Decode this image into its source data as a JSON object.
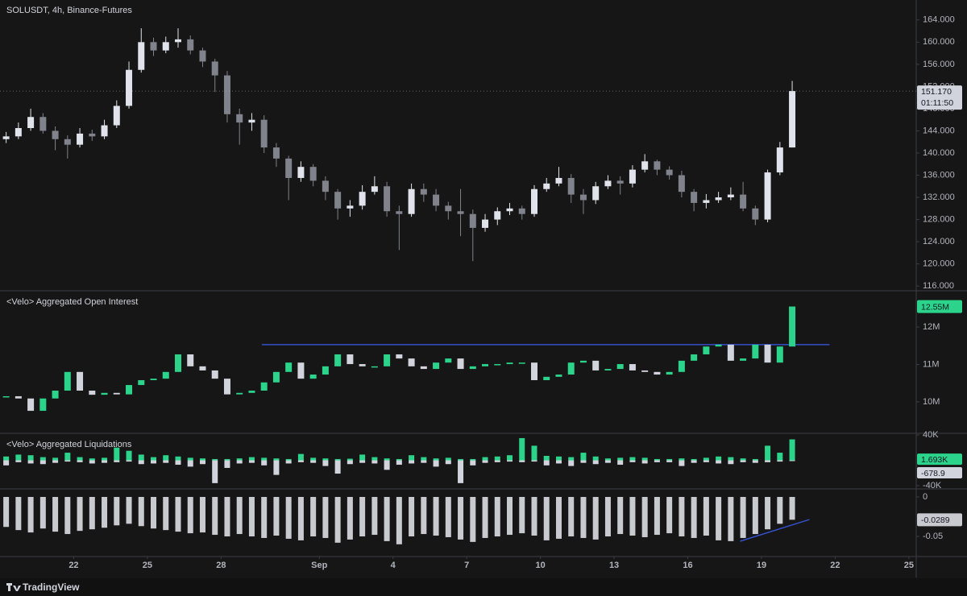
{
  "x_axis": {
    "xlim": [
      19,
      56.3
    ],
    "xticks": [
      {
        "value": 22,
        "label": "22"
      },
      {
        "value": 25,
        "label": "25"
      },
      {
        "value": 28,
        "label": "28"
      },
      {
        "value": 32,
        "label": "Sep"
      },
      {
        "value": 35,
        "label": "4"
      },
      {
        "value": 38,
        "label": "7"
      },
      {
        "value": 41,
        "label": "10"
      },
      {
        "value": 44,
        "label": "13"
      },
      {
        "value": 47,
        "label": "16"
      },
      {
        "value": 50,
        "label": "19"
      },
      {
        "value": 53,
        "label": "22"
      },
      {
        "value": 56,
        "label": "25"
      }
    ]
  },
  "footer": "TradingView",
  "chart_data": [
    {
      "type": "candlestick",
      "title": "SOLUSDT, 4h, Binance-Futures",
      "x": [
        19.25,
        19.75,
        20.25,
        20.75,
        21.25,
        21.75,
        22.25,
        22.75,
        23.25,
        23.75,
        24.25,
        24.75,
        25.25,
        25.75,
        26.25,
        26.75,
        27.25,
        27.75,
        28.25,
        28.75,
        29.25,
        29.75,
        30.25,
        30.75,
        31.25,
        31.75,
        32.25,
        32.75,
        33.25,
        33.75,
        34.25,
        34.75,
        35.25,
        35.75,
        36.25,
        36.75,
        37.25,
        37.75,
        38.25,
        38.75,
        39.25,
        39.75,
        40.25,
        40.75,
        41.25,
        41.75,
        42.25,
        42.75,
        43.25,
        43.75,
        44.25,
        44.75,
        45.25,
        45.75,
        46.25,
        46.75,
        47.25,
        47.75,
        48.25,
        48.75,
        49.25,
        49.75,
        50.25,
        50.75,
        51.25
      ],
      "open": [
        142.5,
        143.0,
        144.5,
        146.5,
        144.0,
        142.5,
        141.5,
        143.5,
        143.0,
        145.0,
        148.5,
        155.0,
        160.0,
        158.5,
        160.0,
        160.5,
        158.5,
        156.5,
        154.0,
        147.0,
        145.5,
        146.0,
        141.0,
        139.0,
        135.5,
        137.5,
        135.0,
        133.0,
        130.0,
        130.5,
        133.0,
        134.0,
        129.5,
        129.0,
        133.5,
        132.5,
        130.5,
        129.5,
        129.0,
        126.5,
        128.0,
        129.5,
        130.0,
        129.0,
        133.5,
        134.5,
        135.5,
        132.5,
        131.5,
        134.0,
        135.0,
        134.5,
        137.0,
        138.5,
        137.0,
        136.0,
        133.0,
        131.0,
        131.5,
        132.0,
        132.5,
        130.0,
        128.0,
        136.5,
        141.0
      ],
      "high": [
        143.8,
        145.5,
        148.0,
        147.2,
        144.8,
        143.2,
        144.5,
        144.2,
        146.0,
        149.5,
        156.5,
        162.5,
        160.8,
        161.0,
        162.5,
        161.2,
        159.0,
        157.0,
        154.8,
        148.0,
        147.2,
        146.8,
        141.8,
        139.5,
        138.5,
        138.0,
        135.8,
        133.5,
        131.5,
        134.2,
        135.8,
        134.8,
        130.5,
        134.5,
        134.5,
        133.5,
        131.2,
        133.5,
        129.8,
        129.0,
        130.2,
        131.0,
        130.5,
        134.2,
        135.5,
        137.5,
        136.2,
        133.5,
        134.8,
        136.0,
        135.8,
        137.8,
        139.8,
        138.8,
        137.6,
        136.8,
        133.5,
        132.6,
        133.0,
        133.8,
        134.8,
        130.5,
        137.0,
        142.0,
        153.0
      ],
      "low": [
        141.8,
        142.5,
        144.0,
        143.5,
        140.5,
        139.0,
        141.0,
        142.2,
        142.5,
        144.5,
        148.0,
        154.5,
        157.5,
        158.0,
        159.0,
        157.8,
        155.5,
        151.0,
        145.5,
        141.5,
        144.0,
        140.0,
        137.5,
        131.5,
        134.8,
        134.0,
        131.5,
        128.0,
        128.5,
        129.8,
        132.5,
        128.5,
        122.5,
        128.5,
        131.2,
        129.5,
        128.0,
        125.0,
        120.5,
        125.8,
        127.0,
        128.8,
        128.0,
        128.5,
        133.0,
        134.0,
        131.0,
        129.0,
        130.8,
        133.5,
        132.5,
        133.8,
        136.5,
        136.0,
        135.2,
        132.0,
        129.5,
        130.0,
        131.0,
        131.5,
        129.5,
        127.0,
        127.5,
        136.0,
        141.0
      ],
      "close": [
        143.0,
        144.5,
        146.5,
        144.0,
        142.5,
        141.5,
        143.5,
        143.0,
        145.0,
        148.5,
        155.0,
        160.0,
        158.5,
        160.0,
        160.5,
        158.5,
        156.5,
        154.0,
        147.0,
        145.5,
        146.0,
        141.0,
        139.0,
        135.5,
        137.5,
        135.0,
        133.0,
        130.0,
        130.5,
        133.0,
        134.0,
        129.5,
        129.0,
        133.5,
        132.5,
        130.5,
        129.5,
        129.0,
        126.5,
        128.0,
        129.5,
        130.0,
        129.0,
        133.5,
        134.5,
        135.5,
        132.5,
        131.5,
        134.0,
        135.0,
        134.5,
        137.0,
        138.5,
        137.0,
        136.0,
        133.0,
        131.0,
        131.5,
        132.0,
        132.5,
        130.0,
        128.0,
        136.5,
        141.0,
        151.17
      ],
      "last_label": "151.170",
      "countdown": "01:11:50",
      "color_up": "#e0e3eb",
      "color_down": "#80838c",
      "ylim": [
        115.3,
        167.6
      ],
      "yticks": [
        {
          "value": 116,
          "label": "116.000"
        },
        {
          "value": 120,
          "label": "120.000"
        },
        {
          "value": 124,
          "label": "124.000"
        },
        {
          "value": 128,
          "label": "128.000"
        },
        {
          "value": 132,
          "label": "132.000"
        },
        {
          "value": 136,
          "label": "136.000"
        },
        {
          "value": 140,
          "label": "140.000"
        },
        {
          "value": 144,
          "label": "144.000"
        },
        {
          "value": 148,
          "label": "148.000"
        },
        {
          "value": 152,
          "label": "152.000"
        },
        {
          "value": 156,
          "label": "156.000"
        },
        {
          "value": 160,
          "label": "160.000"
        },
        {
          "value": 164,
          "label": "164.000"
        }
      ]
    },
    {
      "type": "delta",
      "title": "<Velo> Aggregated Open Interest",
      "values": [
        10150000,
        10090000,
        9760000,
        10090000,
        10300000,
        10800000,
        10300000,
        10190000,
        10240000,
        10200000,
        10450000,
        10580000,
        10620000,
        10800000,
        11270000,
        10950000,
        10840000,
        10620000,
        10200000,
        10240000,
        10300000,
        10520000,
        10800000,
        11050000,
        10620000,
        10730000,
        10950000,
        11270000,
        11010000,
        10950000,
        10950000,
        11270000,
        11160000,
        10950000,
        10880000,
        11050000,
        11160000,
        10880000,
        10950000,
        11010000,
        11010000,
        11050000,
        11050000,
        10580000,
        10670000,
        10730000,
        11050000,
        11100000,
        10840000,
        10880000,
        11010000,
        10840000,
        10800000,
        10730000,
        10800000,
        11100000,
        11270000,
        11480000,
        11530000,
        11100000,
        11160000,
        11530000,
        11050000,
        11480000,
        12550000
      ],
      "last_label": "12.55M",
      "color_up": "#2bd48a",
      "color_down": "#d1d4dc",
      "hline": {
        "value": 11530000,
        "x": [
          29.66,
          52.77
        ],
        "color": "#3350c8"
      },
      "ylim": [
        9180000,
        12950000
      ],
      "yticks": [
        {
          "value": 10000000,
          "label": "10M"
        },
        {
          "value": 11000000,
          "label": "11M"
        },
        {
          "value": 12000000,
          "label": "12M"
        }
      ]
    },
    {
      "type": "bar",
      "title": "<Velo> Aggregated Liquidations",
      "series": [
        {
          "color": "#2bd48a",
          "values": [
            6000,
            9000,
            8000,
            5000,
            4000,
            12000,
            5000,
            3000,
            4000,
            20000,
            15000,
            9000,
            5000,
            8000,
            6000,
            4000,
            3000,
            2000,
            2000,
            3000,
            5000,
            4000,
            3000,
            2000,
            10000,
            4000,
            3000,
            2000,
            2500,
            9000,
            5000,
            3000,
            2000,
            8000,
            5000,
            3000,
            4000,
            2000,
            2000,
            5000,
            6000,
            8000,
            35000,
            23000,
            7000,
            6000,
            5000,
            12000,
            6000,
            3000,
            4000,
            5000,
            4000,
            2000,
            2000,
            3000,
            2000,
            4000,
            6000,
            5000,
            3000,
            2000,
            23000,
            12000,
            33000
          ]
        },
        {
          "color": "#d1d4dc",
          "values": [
            -8000,
            -3000,
            -5000,
            -6000,
            -4000,
            -2000,
            -3000,
            -5000,
            -4000,
            -3000,
            -2000,
            -6000,
            -5000,
            -4000,
            -7000,
            -10000,
            -6000,
            -36000,
            -12000,
            -5000,
            -4000,
            -8000,
            -23000,
            -5000,
            -3000,
            -4000,
            -9000,
            -21000,
            -6000,
            -4000,
            -5000,
            -15000,
            -7000,
            -5000,
            -4000,
            -10000,
            -6000,
            -36000,
            -8000,
            -4000,
            -3000,
            -2000,
            -3000,
            -2000,
            -8000,
            -5000,
            -9000,
            -4000,
            -6000,
            -4000,
            -7000,
            -3000,
            -5000,
            -3000,
            -3000,
            -9000,
            -4000,
            -3000,
            -5000,
            -6000,
            -3000,
            -4000,
            -3000,
            -2000,
            -678.9
          ]
        }
      ],
      "current": {
        "value": 1693,
        "label": "1.693K"
      },
      "ylim": [
        -43800,
        41300
      ],
      "yticks": [
        {
          "value": -40000,
          "label": "-40K"
        },
        {
          "value": 40000,
          "label": "40K"
        }
      ]
    },
    {
      "type": "bar",
      "series": [
        {
          "color": "#c8cad0",
          "values": [
            -0.038,
            -0.042,
            -0.045,
            -0.04,
            -0.044,
            -0.047,
            -0.043,
            -0.041,
            -0.039,
            -0.036,
            -0.034,
            -0.037,
            -0.04,
            -0.042,
            -0.044,
            -0.046,
            -0.045,
            -0.048,
            -0.05,
            -0.047,
            -0.05,
            -0.052,
            -0.049,
            -0.053,
            -0.055,
            -0.05,
            -0.052,
            -0.058,
            -0.054,
            -0.05,
            -0.048,
            -0.056,
            -0.06,
            -0.05,
            -0.047,
            -0.049,
            -0.051,
            -0.054,
            -0.057,
            -0.052,
            -0.05,
            -0.048,
            -0.046,
            -0.049,
            -0.055,
            -0.053,
            -0.05,
            -0.052,
            -0.054,
            -0.05,
            -0.047,
            -0.049,
            -0.051,
            -0.048,
            -0.046,
            -0.05,
            -0.052,
            -0.049,
            -0.055,
            -0.056,
            -0.052,
            -0.047,
            -0.041,
            -0.034,
            -0.0289
          ]
        }
      ],
      "trendline": {
        "x": [
          49.13,
          51.95
        ],
        "y": [
          -0.0561,
          -0.0286
        ],
        "color": "#3350c8"
      },
      "ylim": [
        -0.0745,
        0.0092
      ],
      "yticks": [
        -0.05,
        0
      ]
    }
  ]
}
